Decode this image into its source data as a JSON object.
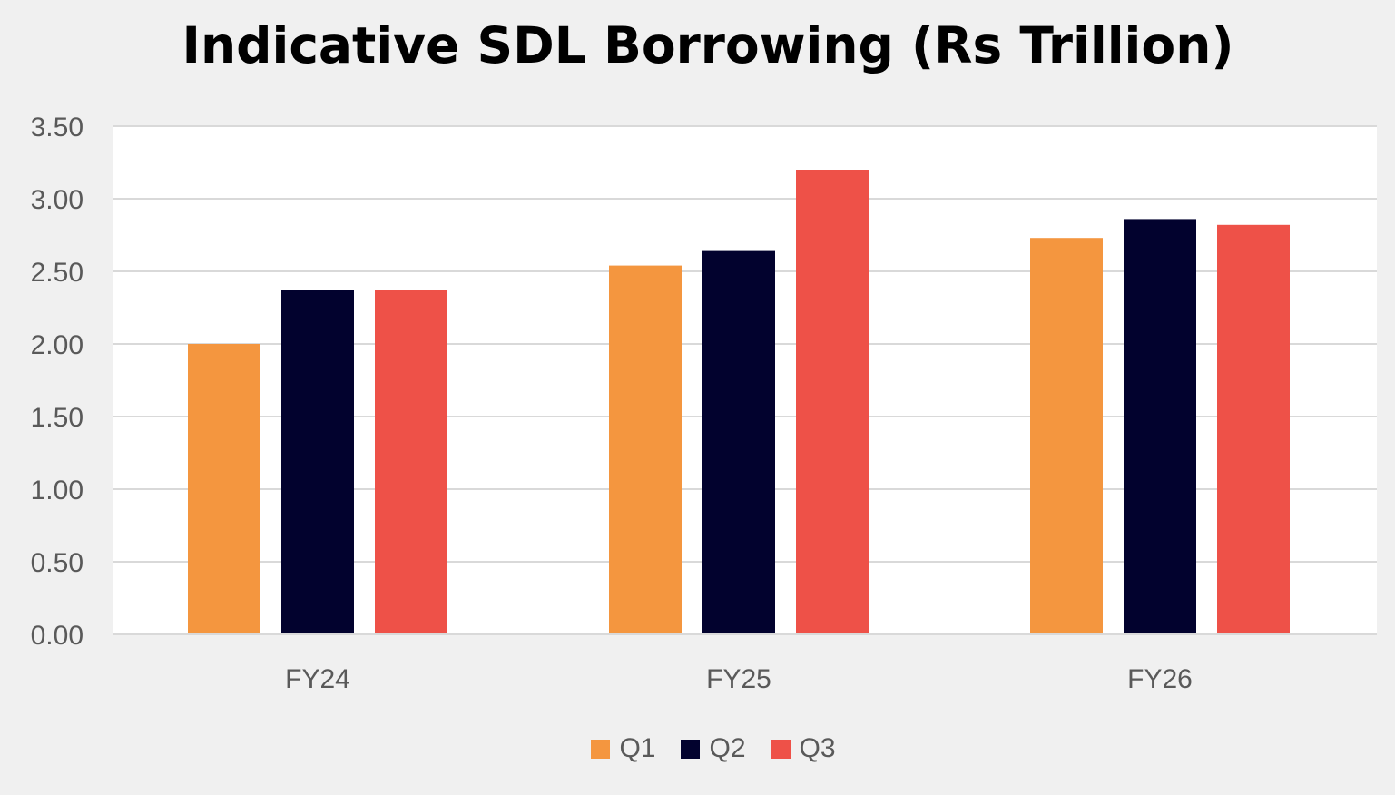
{
  "chart_data": {
    "type": "bar",
    "title": "Indicative SDL Borrowing (Rs Trillion)",
    "categories": [
      "FY24",
      "FY25",
      "FY26"
    ],
    "series": [
      {
        "name": "Q1",
        "values": [
          2.0,
          2.54,
          2.73
        ],
        "color": "#f4963f"
      },
      {
        "name": "Q2",
        "values": [
          2.37,
          2.64,
          2.86
        ],
        "color": "#02022e"
      },
      {
        "name": "Q3",
        "values": [
          2.37,
          3.2,
          2.82
        ],
        "color": "#ee5148"
      }
    ],
    "yticks": [
      "0.00",
      "0.50",
      "1.00",
      "1.50",
      "2.00",
      "2.50",
      "3.00",
      "3.50"
    ],
    "ylim": [
      0,
      3.5
    ],
    "grid": true,
    "legend_position": "bottom",
    "plot_background": "#ffffff",
    "page_background": "#f0f0f0"
  }
}
